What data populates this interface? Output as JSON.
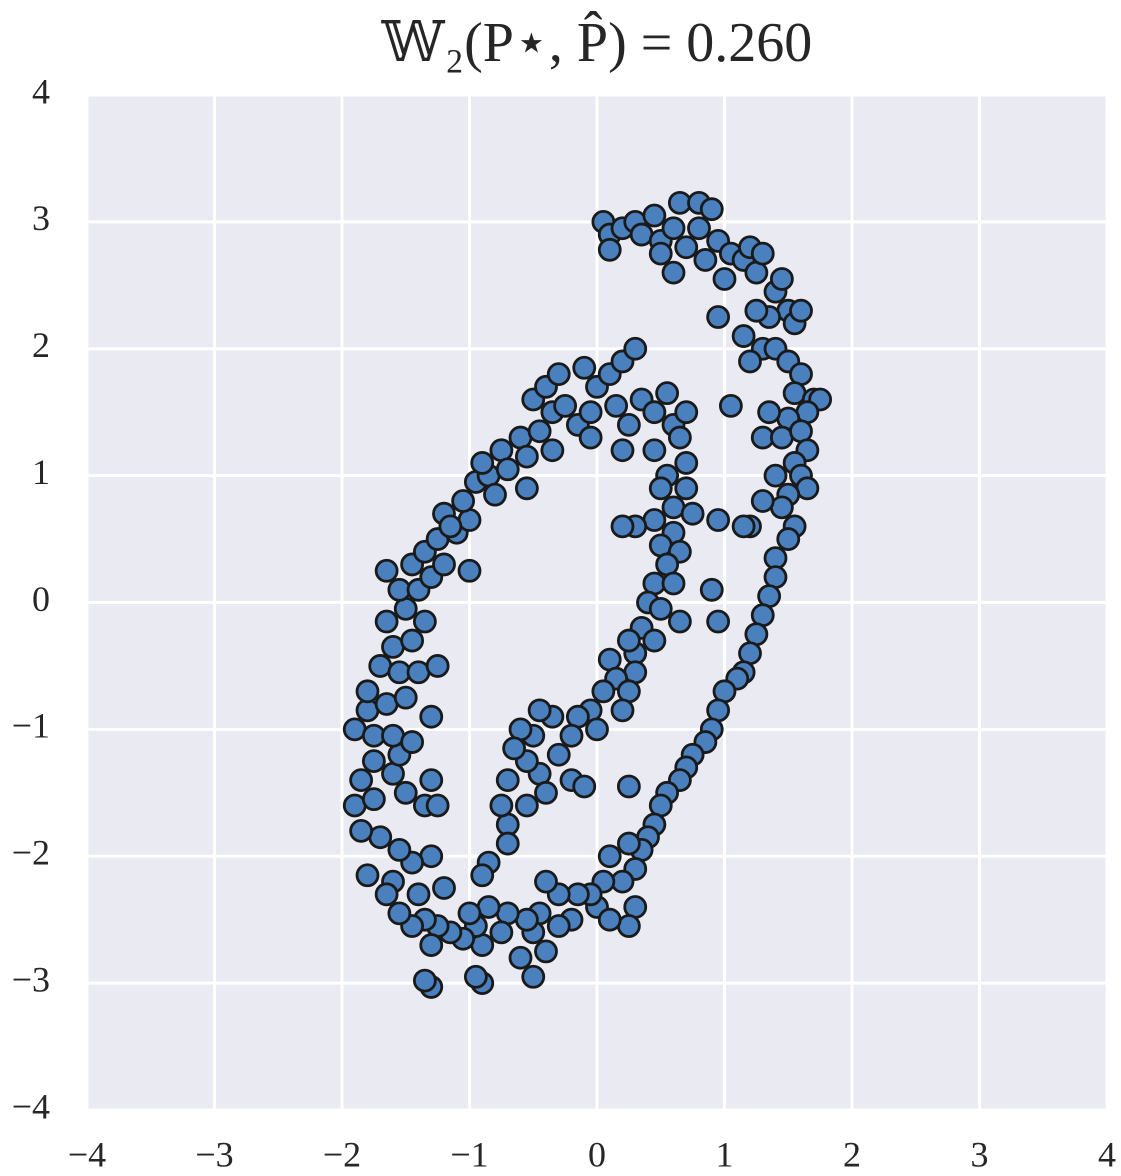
{
  "chart_data": {
    "type": "scatter",
    "title": "𝕎₂(P⋆, P̂) = 0.260",
    "color": "#4a80bd",
    "edgecolor": "#1a1a1a",
    "grid": true,
    "xlim": [
      -4,
      4
    ],
    "ylim": [
      -4,
      4
    ],
    "xticks": [
      {
        "value": -4,
        "label": "−4"
      },
      {
        "value": -3,
        "label": "−3"
      },
      {
        "value": -2,
        "label": "−2"
      },
      {
        "value": -1,
        "label": "−1"
      },
      0,
      1,
      2,
      3,
      4
    ],
    "yticks": [
      {
        "value": -4,
        "label": "−4"
      },
      {
        "value": -3,
        "label": "−3"
      },
      {
        "value": -2,
        "label": "−2"
      },
      {
        "value": -1,
        "label": "−1"
      },
      0,
      1,
      2,
      3,
      4
    ],
    "x": [
      0.05,
      0.1,
      0.1,
      0.2,
      0.3,
      0.35,
      0.45,
      0.5,
      0.5,
      0.6,
      0.6,
      0.65,
      0.7,
      0.8,
      0.8,
      0.85,
      0.9,
      0.95,
      1.0,
      1.05,
      1.15,
      1.2,
      1.25,
      1.3,
      1.4,
      1.45,
      1.5,
      1.55,
      1.6,
      1.35,
      1.25,
      1.15,
      0.95,
      1.3,
      1.4,
      1.5,
      1.6,
      1.55,
      1.7,
      1.75,
      1.65,
      1.5,
      1.35,
      1.05,
      1.2,
      1.3,
      1.45,
      1.6,
      1.65,
      1.55,
      1.6,
      1.65,
      1.4,
      1.5,
      1.45,
      1.3,
      1.55,
      1.5,
      1.2,
      1.4,
      1.4,
      1.35,
      1.3,
      1.25,
      1.2,
      1.15,
      1.1,
      1.0,
      0.95,
      0.9,
      0.85,
      0.75,
      0.7,
      0.65,
      0.55,
      0.5,
      0.45,
      0.4,
      0.35,
      0.25,
      0.3,
      0.2,
      0.1,
      0.05,
      0.0,
      -0.05,
      0.3,
      0.25,
      0.1,
      -0.15,
      -0.2,
      -0.3,
      -0.3,
      -0.4,
      -0.45,
      -0.5,
      -0.4,
      -0.55,
      -0.6,
      -0.7,
      -0.75,
      -0.85,
      -0.9,
      -0.95,
      -1.0,
      -1.05,
      -1.15,
      -1.25,
      -1.35,
      -1.3,
      -1.45,
      -1.4,
      -1.55,
      -1.6,
      -1.3,
      -1.2,
      -0.5,
      -0.9,
      -0.95,
      -1.3,
      -1.35,
      -1.45,
      -1.55,
      -1.7,
      -1.85,
      -1.8,
      -1.65,
      -1.9,
      -1.75,
      -1.5,
      -1.35,
      -1.25,
      -1.3,
      -1.6,
      -1.85,
      -1.75,
      -1.55,
      -1.9,
      -1.75,
      -1.6,
      -1.45,
      -1.3,
      -1.8,
      -1.65,
      -1.5,
      -1.8,
      -1.7,
      -1.55,
      -1.4,
      -1.25,
      -1.6,
      -1.45,
      -1.65,
      -1.5,
      -1.35,
      -1.55,
      -1.4,
      -1.3,
      -1.45,
      -1.35,
      -1.2,
      -1.65,
      -1.25,
      -1.1,
      -1.2,
      -1.0,
      -1.15,
      -1.0,
      -1.05,
      -0.95,
      -0.85,
      -0.9,
      -0.8,
      -0.75,
      -0.7,
      -0.6,
      -0.55,
      -0.55,
      -0.45,
      -0.35,
      -0.5,
      -0.4,
      -0.3,
      -0.25,
      -0.15,
      -0.1,
      0.0,
      -0.05,
      0.1,
      0.2,
      0.3,
      0.15,
      0.25,
      0.35,
      0.45,
      0.55,
      0.6,
      0.7,
      0.45,
      0.65,
      0.7,
      -0.05,
      -0.35,
      0.2,
      0.55,
      0.7,
      0.5,
      0.6,
      0.75,
      0.45,
      0.6,
      0.3,
      0.2,
      0.5,
      0.65,
      0.55,
      0.45,
      0.6,
      0.4,
      0.5,
      0.65,
      0.35,
      0.45,
      0.3,
      0.1,
      0.3,
      0.15,
      0.25,
      0.05,
      0.2,
      -0.05,
      0.0,
      -0.15,
      -0.2,
      -0.35,
      -0.3,
      -0.45,
      -0.5,
      -0.6,
      -0.45,
      -0.55,
      -0.65,
      -0.4,
      -0.55,
      -0.7,
      -0.7,
      -0.7,
      -0.75,
      -0.85,
      -0.9,
      -0.2,
      -0.1,
      0.25,
      0.9,
      0.95,
      0.95,
      1.15,
      0.25
    ],
    "values": [
      3.0,
      2.9,
      2.78,
      2.95,
      3.0,
      2.9,
      3.05,
      2.85,
      2.75,
      2.6,
      2.95,
      3.15,
      2.8,
      3.15,
      2.95,
      2.7,
      3.1,
      2.85,
      2.55,
      2.75,
      2.7,
      2.8,
      2.6,
      2.75,
      2.45,
      2.55,
      2.3,
      2.2,
      2.3,
      2.25,
      2.3,
      2.1,
      2.25,
      2.0,
      2.0,
      1.9,
      1.8,
      1.65,
      1.6,
      1.6,
      1.5,
      1.45,
      1.5,
      1.55,
      1.9,
      1.3,
      1.3,
      1.35,
      1.2,
      1.1,
      1.0,
      0.9,
      1.0,
      0.85,
      0.75,
      0.8,
      0.6,
      0.5,
      0.6,
      0.35,
      0.2,
      0.05,
      -0.1,
      -0.25,
      -0.4,
      -0.55,
      -0.6,
      -0.7,
      -0.85,
      -1.0,
      -1.1,
      -1.2,
      -1.3,
      -1.4,
      -1.5,
      -1.6,
      -1.75,
      -1.85,
      -1.95,
      -1.9,
      -2.1,
      -2.2,
      -2.0,
      -2.2,
      -2.4,
      -2.3,
      -2.4,
      -2.55,
      -2.5,
      -2.3,
      -2.5,
      -2.3,
      -2.55,
      -2.2,
      -2.45,
      -2.6,
      -2.75,
      -2.5,
      -2.8,
      -2.45,
      -2.6,
      -2.4,
      -2.7,
      -2.55,
      -2.45,
      -2.65,
      -2.6,
      -2.55,
      -2.5,
      -2.7,
      -2.55,
      -2.3,
      -2.45,
      -2.2,
      -2.0,
      -2.25,
      -2.95,
      -3.0,
      -2.95,
      -3.03,
      -2.98,
      -2.05,
      -1.95,
      -1.85,
      -1.8,
      -2.15,
      -2.3,
      -1.6,
      -1.55,
      -1.5,
      -1.6,
      -1.6,
      -1.4,
      -1.35,
      -1.4,
      -1.25,
      -1.2,
      -1.0,
      -1.05,
      -1.05,
      -1.1,
      -0.9,
      -0.85,
      -0.8,
      -0.75,
      -0.7,
      -0.5,
      -0.55,
      -0.55,
      -0.5,
      -0.35,
      -0.3,
      -0.15,
      -0.05,
      -0.15,
      0.1,
      0.1,
      0.2,
      0.3,
      0.4,
      0.3,
      0.25,
      0.5,
      0.55,
      0.7,
      0.65,
      0.6,
      0.25,
      0.8,
      0.95,
      1.0,
      1.1,
      0.85,
      1.2,
      1.05,
      1.3,
      1.15,
      0.9,
      1.35,
      1.5,
      1.6,
      1.7,
      1.8,
      1.55,
      1.4,
      1.85,
      1.7,
      1.5,
      1.8,
      1.9,
      2.0,
      1.55,
      1.4,
      1.6,
      1.5,
      1.65,
      1.4,
      1.5,
      1.2,
      1.3,
      1.1,
      1.3,
      1.2,
      1.2,
      1.0,
      0.9,
      0.9,
      0.75,
      0.7,
      0.65,
      0.55,
      0.6,
      0.6,
      0.45,
      0.4,
      0.3,
      0.15,
      0.15,
      0.0,
      -0.05,
      -0.15,
      -0.2,
      -0.3,
      -0.4,
      -0.45,
      -0.55,
      -0.6,
      -0.7,
      -0.7,
      -0.85,
      -0.85,
      -1.0,
      -0.9,
      -1.05,
      -0.9,
      -1.2,
      -0.85,
      -1.05,
      -1.0,
      -1.35,
      -1.25,
      -1.15,
      -1.5,
      -1.6,
      -1.4,
      -1.75,
      -1.9,
      -1.6,
      -2.05,
      -2.15,
      -1.4,
      -1.45,
      -1.45,
      0.1,
      -0.15,
      0.65,
      0.6,
      -0.3
    ]
  }
}
